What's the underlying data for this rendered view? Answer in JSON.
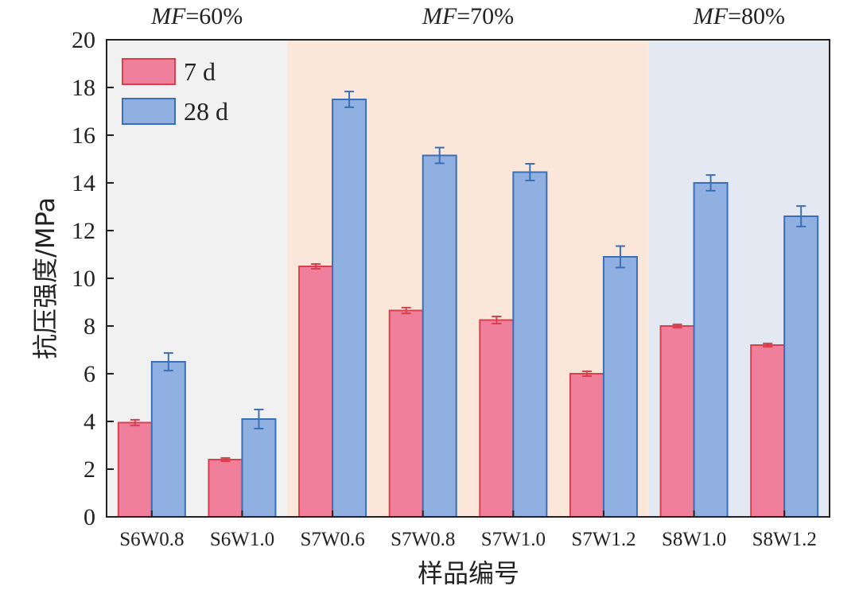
{
  "chart_data": {
    "type": "bar",
    "title": "",
    "xlabel": "样品编号",
    "ylabel": "抗压强度/MPa",
    "ylim": [
      0,
      20
    ],
    "yticks": [
      0,
      2,
      4,
      6,
      8,
      10,
      12,
      14,
      16,
      18,
      20
    ],
    "categories": [
      "S6W0.8",
      "S6W1.0",
      "S7W0.6",
      "S7W0.8",
      "S7W1.0",
      "S7W1.2",
      "S8W1.0",
      "S8W1.2"
    ],
    "series": [
      {
        "name": "7 d",
        "fill": "#f07f9c",
        "stroke": "#d9404e",
        "values": [
          3.95,
          2.4,
          10.5,
          8.65,
          8.25,
          6.0,
          8.0,
          7.2
        ],
        "errors": [
          0.12,
          0.07,
          0.1,
          0.12,
          0.15,
          0.1,
          0.07,
          0.07
        ]
      },
      {
        "name": "28 d",
        "fill": "#8fb0e0",
        "stroke": "#3b6fb5",
        "values": [
          6.5,
          4.1,
          17.5,
          15.15,
          14.45,
          10.9,
          14.0,
          12.6
        ],
        "errors": [
          0.37,
          0.4,
          0.33,
          0.33,
          0.35,
          0.45,
          0.33,
          0.43
        ]
      }
    ],
    "groups": [
      {
        "prefix": "MF",
        "suffix": "=60%",
        "start": 0,
        "end": 2,
        "bg": "#f1f1f1"
      },
      {
        "prefix": "MF",
        "suffix": "=70%",
        "start": 2,
        "end": 6,
        "bg": "#fbe6da"
      },
      {
        "prefix": "MF",
        "suffix": "=80%",
        "start": 6,
        "end": 8,
        "bg": "#e4e8f2"
      }
    ],
    "legend_position": "top-left"
  }
}
